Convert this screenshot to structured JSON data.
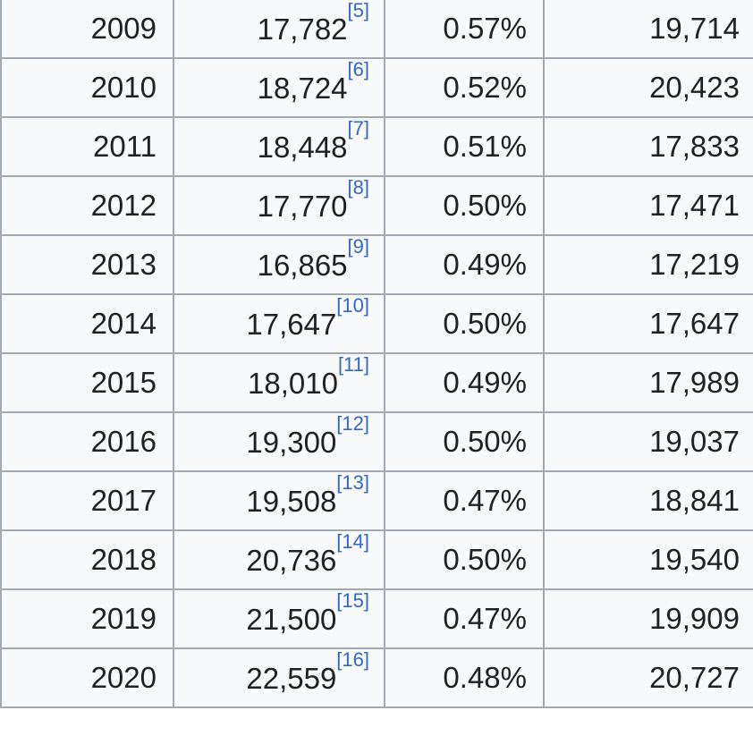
{
  "table": {
    "rows": [
      {
        "year": "2009",
        "value": "17,782",
        "ref": "[5]",
        "percent": "0.57%",
        "adjusted": "19,714"
      },
      {
        "year": "2010",
        "value": "18,724",
        "ref": "[6]",
        "percent": "0.52%",
        "adjusted": "20,423"
      },
      {
        "year": "2011",
        "value": "18,448",
        "ref": "[7]",
        "percent": "0.51%",
        "adjusted": "17,833"
      },
      {
        "year": "2012",
        "value": "17,770",
        "ref": "[8]",
        "percent": "0.50%",
        "adjusted": "17,471"
      },
      {
        "year": "2013",
        "value": "16,865",
        "ref": "[9]",
        "percent": "0.49%",
        "adjusted": "17,219"
      },
      {
        "year": "2014",
        "value": "17,647",
        "ref": "[10]",
        "percent": "0.50%",
        "adjusted": "17,647"
      },
      {
        "year": "2015",
        "value": "18,010",
        "ref": "[11]",
        "percent": "0.49%",
        "adjusted": "17,989"
      },
      {
        "year": "2016",
        "value": "19,300",
        "ref": "[12]",
        "percent": "0.50%",
        "adjusted": "19,037"
      },
      {
        "year": "2017",
        "value": "19,508",
        "ref": "[13]",
        "percent": "0.47%",
        "adjusted": "18,841"
      },
      {
        "year": "2018",
        "value": "20,736",
        "ref": "[14]",
        "percent": "0.50%",
        "adjusted": "19,540"
      },
      {
        "year": "2019",
        "value": "21,500",
        "ref": "[15]",
        "percent": "0.47%",
        "adjusted": "19,909"
      },
      {
        "year": "2020",
        "value": "22,559",
        "ref": "[16]",
        "percent": "0.48%",
        "adjusted": "20,727"
      }
    ]
  }
}
